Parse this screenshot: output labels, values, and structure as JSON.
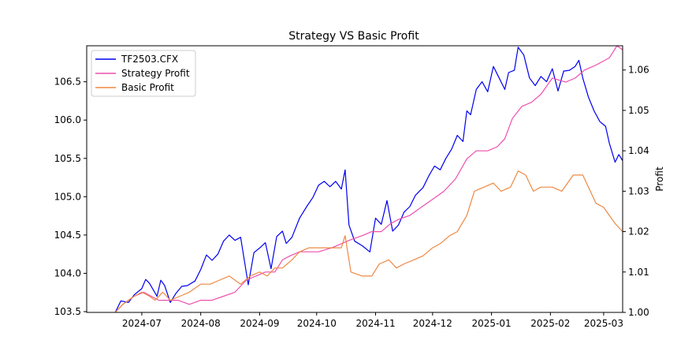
{
  "chart_data": {
    "type": "line",
    "title": "Strategy VS Basic Profit",
    "xlabel": "",
    "ylabel_left": "",
    "ylabel_right": "Profit",
    "x_ticks": [
      "2024-07",
      "2024-08",
      "2024-09",
      "2024-10",
      "2024-11",
      "2024-12",
      "2025-01",
      "2025-02",
      "2025-03"
    ],
    "y_left_ticks": [
      "103.5",
      "104.0",
      "104.5",
      "105.0",
      "105.5",
      "106.0",
      "106.5"
    ],
    "y_right_ticks": [
      "1.00",
      "1.01",
      "1.02",
      "1.03",
      "1.04",
      "1.05",
      "1.06"
    ],
    "xlim": [
      "2024-06-02",
      "2025-03-11"
    ],
    "ylim_left": [
      103.49,
      106.97
    ],
    "ylim_right": [
      1.0,
      1.066
    ],
    "legend_position": "upper-left",
    "colors": {
      "price": "#0000ee",
      "strategy": "#ee4fae",
      "basic": "#ee8844"
    },
    "series": [
      {
        "name": "TF2503.CFX",
        "axis": "left",
        "color": "#0000ee",
        "points": [
          [
            "2024-06-17",
            103.49
          ],
          [
            "2024-06-20",
            103.64
          ],
          [
            "2024-06-24",
            103.62
          ],
          [
            "2024-06-27",
            103.72
          ],
          [
            "2024-07-01",
            103.8
          ],
          [
            "2024-07-03",
            103.92
          ],
          [
            "2024-07-05",
            103.87
          ],
          [
            "2024-07-09",
            103.7
          ],
          [
            "2024-07-11",
            103.91
          ],
          [
            "2024-07-13",
            103.84
          ],
          [
            "2024-07-16",
            103.62
          ],
          [
            "2024-07-19",
            103.74
          ],
          [
            "2024-07-22",
            103.83
          ],
          [
            "2024-07-25",
            103.84
          ],
          [
            "2024-07-29",
            103.9
          ],
          [
            "2024-08-01",
            104.05
          ],
          [
            "2024-08-04",
            104.24
          ],
          [
            "2024-08-07",
            104.17
          ],
          [
            "2024-08-10",
            104.25
          ],
          [
            "2024-08-13",
            104.42
          ],
          [
            "2024-08-16",
            104.5
          ],
          [
            "2024-08-19",
            104.43
          ],
          [
            "2024-08-22",
            104.47
          ],
          [
            "2024-08-26",
            103.85
          ],
          [
            "2024-08-29",
            104.27
          ],
          [
            "2024-09-01",
            104.33
          ],
          [
            "2024-09-04",
            104.4
          ],
          [
            "2024-09-07",
            104.06
          ],
          [
            "2024-09-10",
            104.48
          ],
          [
            "2024-09-13",
            104.55
          ],
          [
            "2024-09-15",
            104.39
          ],
          [
            "2024-09-18",
            104.47
          ],
          [
            "2024-09-22",
            104.72
          ],
          [
            "2024-09-26",
            104.88
          ],
          [
            "2024-09-29",
            104.99
          ],
          [
            "2024-10-02",
            105.15
          ],
          [
            "2024-10-05",
            105.2
          ],
          [
            "2024-10-08",
            105.13
          ],
          [
            "2024-10-11",
            105.2
          ],
          [
            "2024-10-14",
            105.1
          ],
          [
            "2024-10-16",
            105.35
          ],
          [
            "2024-10-18",
            104.63
          ],
          [
            "2024-10-21",
            104.42
          ],
          [
            "2024-10-25",
            104.36
          ],
          [
            "2024-10-29",
            104.28
          ],
          [
            "2024-11-01",
            104.72
          ],
          [
            "2024-11-04",
            104.64
          ],
          [
            "2024-11-07",
            104.95
          ],
          [
            "2024-11-10",
            104.55
          ],
          [
            "2024-11-13",
            104.63
          ],
          [
            "2024-11-16",
            104.8
          ],
          [
            "2024-11-19",
            104.87
          ],
          [
            "2024-11-22",
            105.02
          ],
          [
            "2024-11-26",
            105.12
          ],
          [
            "2024-11-29",
            105.27
          ],
          [
            "2024-12-02",
            105.4
          ],
          [
            "2024-12-05",
            105.35
          ],
          [
            "2024-12-08",
            105.5
          ],
          [
            "2024-12-11",
            105.62
          ],
          [
            "2024-12-14",
            105.8
          ],
          [
            "2024-12-17",
            105.72
          ],
          [
            "2024-12-19",
            106.12
          ],
          [
            "2024-12-21",
            106.07
          ],
          [
            "2024-12-24",
            106.4
          ],
          [
            "2024-12-27",
            106.5
          ],
          [
            "2024-12-30",
            106.37
          ],
          [
            "2025-01-02",
            106.7
          ],
          [
            "2025-01-05",
            106.55
          ],
          [
            "2025-01-08",
            106.4
          ],
          [
            "2025-01-10",
            106.62
          ],
          [
            "2025-01-13",
            106.65
          ],
          [
            "2025-01-15",
            106.95
          ],
          [
            "2025-01-18",
            106.85
          ],
          [
            "2025-01-21",
            106.55
          ],
          [
            "2025-01-24",
            106.45
          ],
          [
            "2025-01-27",
            106.57
          ],
          [
            "2025-01-30",
            106.5
          ],
          [
            "2025-02-02",
            106.67
          ],
          [
            "2025-02-05",
            106.38
          ],
          [
            "2025-02-08",
            106.64
          ],
          [
            "2025-02-11",
            106.65
          ],
          [
            "2025-02-14",
            106.7
          ],
          [
            "2025-02-16",
            106.78
          ],
          [
            "2025-02-18",
            106.55
          ],
          [
            "2025-02-21",
            106.3
          ],
          [
            "2025-02-24",
            106.12
          ],
          [
            "2025-02-27",
            105.98
          ],
          [
            "2025-03-02",
            105.92
          ],
          [
            "2025-03-04",
            105.7
          ],
          [
            "2025-03-07",
            105.45
          ],
          [
            "2025-03-09",
            105.55
          ],
          [
            "2025-03-11",
            105.47
          ]
        ]
      },
      {
        "name": "Strategy Profit",
        "axis": "right",
        "color": "#ee4fae",
        "points": [
          [
            "2024-06-17",
            1.0
          ],
          [
            "2024-06-21",
            1.002
          ],
          [
            "2024-06-27",
            1.004
          ],
          [
            "2024-07-02",
            1.005
          ],
          [
            "2024-07-06",
            1.004
          ],
          [
            "2024-07-10",
            1.003
          ],
          [
            "2024-07-15",
            1.003
          ],
          [
            "2024-07-20",
            1.003
          ],
          [
            "2024-07-26",
            1.002
          ],
          [
            "2024-08-01",
            1.003
          ],
          [
            "2024-08-07",
            1.003
          ],
          [
            "2024-08-13",
            1.004
          ],
          [
            "2024-08-19",
            1.005
          ],
          [
            "2024-08-25",
            1.008
          ],
          [
            "2024-08-30",
            1.009
          ],
          [
            "2024-09-04",
            1.01
          ],
          [
            "2024-09-09",
            1.01
          ],
          [
            "2024-09-13",
            1.013
          ],
          [
            "2024-09-17",
            1.014
          ],
          [
            "2024-09-22",
            1.015
          ],
          [
            "2024-09-27",
            1.015
          ],
          [
            "2024-10-02",
            1.015
          ],
          [
            "2024-10-09",
            1.016
          ],
          [
            "2024-10-14",
            1.017
          ],
          [
            "2024-10-19",
            1.018
          ],
          [
            "2024-10-25",
            1.019
          ],
          [
            "2024-10-30",
            1.02
          ],
          [
            "2024-11-04",
            1.02
          ],
          [
            "2024-11-09",
            1.022
          ],
          [
            "2024-11-13",
            1.023
          ],
          [
            "2024-11-19",
            1.024
          ],
          [
            "2024-11-25",
            1.026
          ],
          [
            "2024-12-01",
            1.028
          ],
          [
            "2024-12-07",
            1.03
          ],
          [
            "2024-12-13",
            1.033
          ],
          [
            "2024-12-19",
            1.038
          ],
          [
            "2024-12-24",
            1.04
          ],
          [
            "2024-12-30",
            1.04
          ],
          [
            "2025-01-04",
            1.041
          ],
          [
            "2025-01-08",
            1.043
          ],
          [
            "2025-01-12",
            1.048
          ],
          [
            "2025-01-17",
            1.051
          ],
          [
            "2025-01-22",
            1.052
          ],
          [
            "2025-01-27",
            1.054
          ],
          [
            "2025-02-02",
            1.058
          ],
          [
            "2025-02-09",
            1.057
          ],
          [
            "2025-02-14",
            1.058
          ],
          [
            "2025-02-19",
            1.06
          ],
          [
            "2025-02-24",
            1.061
          ],
          [
            "2025-02-28",
            1.062
          ],
          [
            "2025-03-04",
            1.063
          ],
          [
            "2025-03-08",
            1.066
          ],
          [
            "2025-03-11",
            1.065
          ]
        ]
      },
      {
        "name": "Basic Profit",
        "axis": "right",
        "color": "#ee8844",
        "points": [
          [
            "2024-06-17",
            1.0
          ],
          [
            "2024-06-21",
            1.002
          ],
          [
            "2024-06-27",
            1.004
          ],
          [
            "2024-07-01",
            1.005
          ],
          [
            "2024-07-05",
            1.004
          ],
          [
            "2024-07-08",
            1.003
          ],
          [
            "2024-07-12",
            1.005
          ],
          [
            "2024-07-16",
            1.003
          ],
          [
            "2024-07-21",
            1.004
          ],
          [
            "2024-07-26",
            1.005
          ],
          [
            "2024-08-01",
            1.007
          ],
          [
            "2024-08-06",
            1.007
          ],
          [
            "2024-08-11",
            1.008
          ],
          [
            "2024-08-16",
            1.009
          ],
          [
            "2024-08-22",
            1.007
          ],
          [
            "2024-08-27",
            1.009
          ],
          [
            "2024-09-01",
            1.01
          ],
          [
            "2024-09-05",
            1.009
          ],
          [
            "2024-09-09",
            1.011
          ],
          [
            "2024-09-13",
            1.011
          ],
          [
            "2024-09-18",
            1.013
          ],
          [
            "2024-09-22",
            1.015
          ],
          [
            "2024-09-27",
            1.016
          ],
          [
            "2024-10-02",
            1.016
          ],
          [
            "2024-10-09",
            1.016
          ],
          [
            "2024-10-14",
            1.016
          ],
          [
            "2024-10-16",
            1.019
          ],
          [
            "2024-10-19",
            1.01
          ],
          [
            "2024-10-25",
            1.009
          ],
          [
            "2024-10-30",
            1.009
          ],
          [
            "2024-11-03",
            1.012
          ],
          [
            "2024-11-08",
            1.013
          ],
          [
            "2024-11-12",
            1.011
          ],
          [
            "2024-11-16",
            1.012
          ],
          [
            "2024-11-21",
            1.013
          ],
          [
            "2024-11-26",
            1.014
          ],
          [
            "2024-12-01",
            1.016
          ],
          [
            "2024-12-05",
            1.017
          ],
          [
            "2024-12-10",
            1.019
          ],
          [
            "2024-12-14",
            1.02
          ],
          [
            "2024-12-19",
            1.024
          ],
          [
            "2024-12-23",
            1.03
          ],
          [
            "2024-12-28",
            1.031
          ],
          [
            "2025-01-02",
            1.032
          ],
          [
            "2025-01-06",
            1.03
          ],
          [
            "2025-01-11",
            1.031
          ],
          [
            "2025-01-15",
            1.035
          ],
          [
            "2025-01-19",
            1.034
          ],
          [
            "2025-01-23",
            1.03
          ],
          [
            "2025-01-27",
            1.031
          ],
          [
            "2025-02-02",
            1.031
          ],
          [
            "2025-02-07",
            1.03
          ],
          [
            "2025-02-13",
            1.034
          ],
          [
            "2025-02-18",
            1.034
          ],
          [
            "2025-02-21",
            1.031
          ],
          [
            "2025-02-25",
            1.027
          ],
          [
            "2025-03-01",
            1.026
          ],
          [
            "2025-03-04",
            1.024
          ],
          [
            "2025-03-07",
            1.022
          ],
          [
            "2025-03-09",
            1.021
          ],
          [
            "2025-03-11",
            1.02
          ]
        ]
      }
    ]
  }
}
